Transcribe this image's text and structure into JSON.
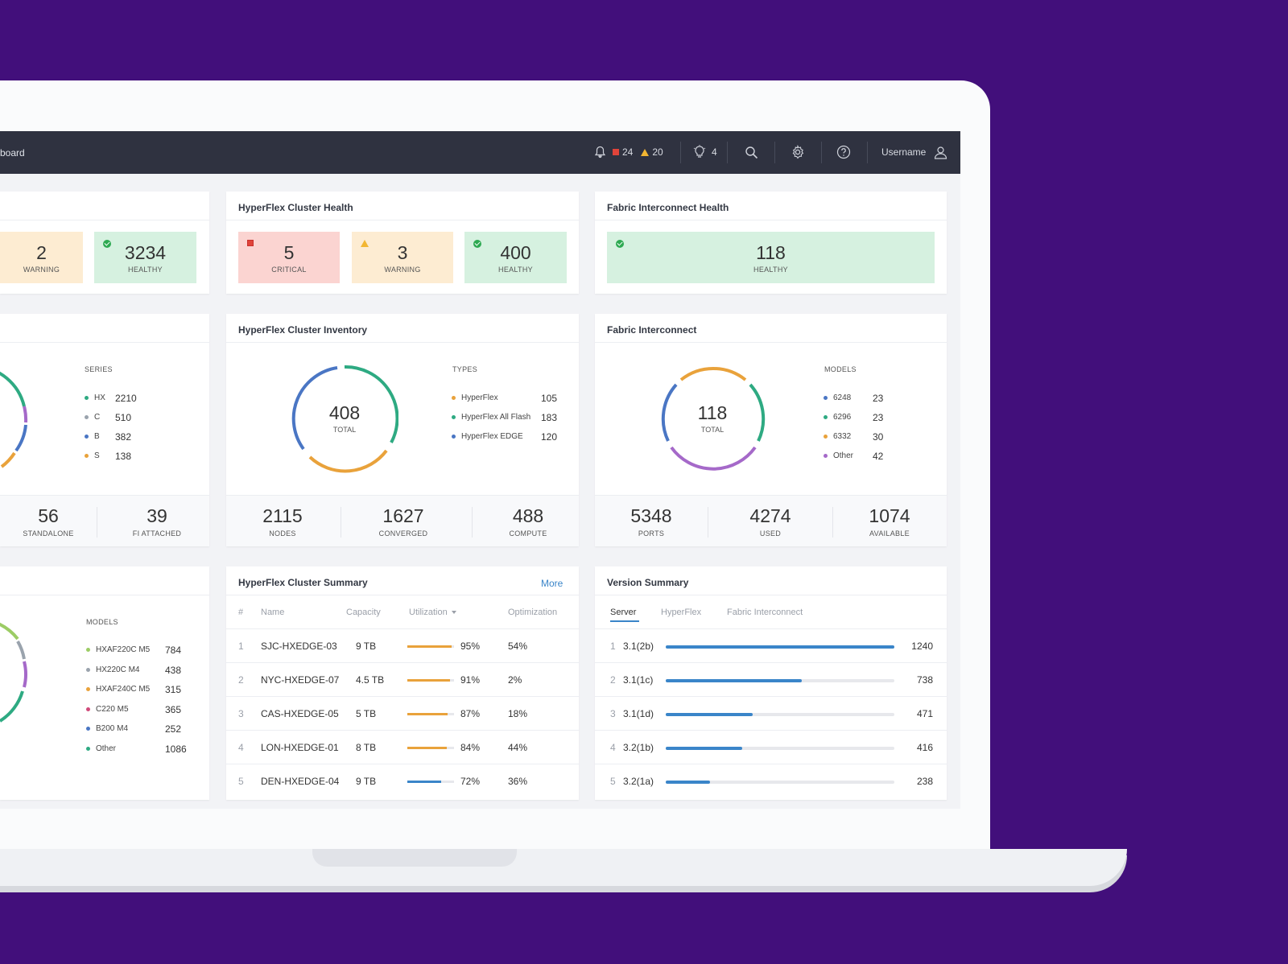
{
  "topbar": {
    "title": "board",
    "critical_alerts": "24",
    "warning_alerts": "20",
    "tips_count": "4",
    "username": "Username"
  },
  "left_column": {
    "health_tiles": [
      {
        "value": "2",
        "label": "WARNING"
      },
      {
        "value": "3234",
        "label": "HEALTHY"
      }
    ],
    "inventory": {
      "legend_head": "SERIES",
      "legend": [
        {
          "name": "HX",
          "value": "2210",
          "color": "#2eaa82"
        },
        {
          "name": "C",
          "value": "510",
          "color": "#9aa3ad"
        },
        {
          "name": "B",
          "value": "382",
          "color": "#4a76c4"
        },
        {
          "name": "S",
          "value": "138",
          "color": "#e9a23b"
        }
      ],
      "stats": [
        {
          "value": "56",
          "label": "STANDALONE"
        },
        {
          "value": "39",
          "label": "FI ATTACHED"
        }
      ]
    },
    "models": {
      "legend_head": "MODELS",
      "legend": [
        {
          "name": "HXAF220C M5",
          "value": "784",
          "color": "#9ccc65"
        },
        {
          "name": "HX220C M4",
          "value": "438",
          "color": "#9aa3ad"
        },
        {
          "name": "HXAF240C M5",
          "value": "315",
          "color": "#e9a23b"
        },
        {
          "name": "C220 M5",
          "value": "365",
          "color": "#d04a7a"
        },
        {
          "name": "B200 M4",
          "value": "252",
          "color": "#4a76c4"
        },
        {
          "name": "Other",
          "value": "1086",
          "color": "#2eaa82"
        }
      ]
    }
  },
  "cluster_health": {
    "title": "HyperFlex Cluster Health",
    "tiles": [
      {
        "value": "5",
        "label": "CRITICAL"
      },
      {
        "value": "3",
        "label": "WARNING"
      },
      {
        "value": "400",
        "label": "HEALTHY"
      }
    ]
  },
  "fi_health": {
    "title": "Fabric Interconnect Health",
    "tile": {
      "value": "118",
      "label": "HEALTHY"
    }
  },
  "cluster_inventory": {
    "title": "HyperFlex Cluster Inventory",
    "total": "408",
    "total_label": "TOTAL",
    "legend_head": "TYPES",
    "legend": [
      {
        "name": "HyperFlex",
        "value": "105",
        "color": "#e9a23b"
      },
      {
        "name": "HyperFlex All Flash",
        "value": "183",
        "color": "#2eaa82"
      },
      {
        "name": "HyperFlex EDGE",
        "value": "120",
        "color": "#4a76c4"
      }
    ],
    "stats": [
      {
        "value": "2115",
        "label": "NODES"
      },
      {
        "value": "1627",
        "label": "CONVERGED"
      },
      {
        "value": "488",
        "label": "COMPUTE"
      }
    ]
  },
  "fabric_interconnect": {
    "title": "Fabric Interconnect",
    "total": "118",
    "total_label": "TOTAL",
    "legend_head": "MODELS",
    "legend": [
      {
        "name": "6248",
        "value": "23",
        "color": "#4a76c4"
      },
      {
        "name": "6296",
        "value": "23",
        "color": "#2eaa82"
      },
      {
        "name": "6332",
        "value": "30",
        "color": "#e9a23b"
      },
      {
        "name": "Other",
        "value": "42",
        "color": "#a569c9"
      }
    ],
    "stats": [
      {
        "value": "5348",
        "label": "PORTS"
      },
      {
        "value": "4274",
        "label": "USED"
      },
      {
        "value": "1074",
        "label": "AVAILABLE"
      }
    ]
  },
  "cluster_summary": {
    "title": "HyperFlex Cluster Summary",
    "more_label": "More",
    "columns": [
      "#",
      "Name",
      "Capacity",
      "Utilization",
      "Optimization"
    ],
    "rows": [
      {
        "index": "1",
        "name": "SJC-HXEDGE-03",
        "capacity": "9 TB",
        "utilization": "95%",
        "util_value": 95,
        "optimization": "54%",
        "bar_color": "#e9a23b"
      },
      {
        "index": "2",
        "name": "NYC-HXEDGE-07",
        "capacity": "4.5 TB",
        "utilization": "91%",
        "util_value": 91,
        "optimization": "2%",
        "bar_color": "#e9a23b"
      },
      {
        "index": "3",
        "name": "CAS-HXEDGE-05",
        "capacity": "5 TB",
        "utilization": "87%",
        "util_value": 87,
        "optimization": "18%",
        "bar_color": "#e9a23b"
      },
      {
        "index": "4",
        "name": "LON-HXEDGE-01",
        "capacity": "8 TB",
        "utilization": "84%",
        "util_value": 84,
        "optimization": "44%",
        "bar_color": "#e9a23b"
      },
      {
        "index": "5",
        "name": "DEN-HXEDGE-04",
        "capacity": "9 TB",
        "utilization": "72%",
        "util_value": 72,
        "optimization": "36%",
        "bar_color": "#3a85c9"
      }
    ]
  },
  "version_summary": {
    "title": "Version Summary",
    "tabs": [
      "Server",
      "HyperFlex",
      "Fabric Interconnect"
    ],
    "rows": [
      {
        "index": "1",
        "version": "3.1(2b)",
        "count": "1240",
        "count_value": 1240
      },
      {
        "index": "2",
        "version": "3.1(1c)",
        "count": "738",
        "count_value": 738
      },
      {
        "index": "3",
        "version": "3.1(1d)",
        "count": "471",
        "count_value": 471
      },
      {
        "index": "4",
        "version": "3.2(1b)",
        "count": "416",
        "count_value": 416
      },
      {
        "index": "5",
        "version": "3.2(1a)",
        "count": "238",
        "count_value": 238
      }
    ],
    "max_value": 1240
  }
}
